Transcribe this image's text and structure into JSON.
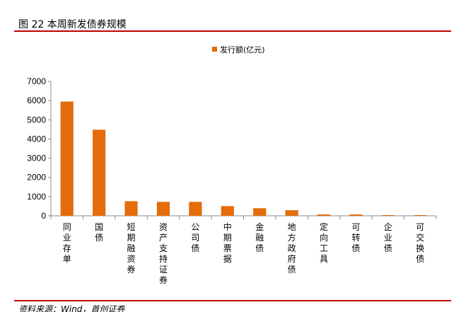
{
  "header": {
    "title": "图  22 本周新发债券规模"
  },
  "footer": {
    "source": "资料来源：Wind，首创证券"
  },
  "colors": {
    "bar": "#e46c0a",
    "rule": "#c00000"
  },
  "chart_data": {
    "type": "bar",
    "title": "",
    "categories": [
      "同业存单",
      "国债",
      "短期融资券",
      "资产支持证券",
      "公司债",
      "中期票据",
      "金融债",
      "地方政府债",
      "定向工具",
      "可转债",
      "企业债",
      "可交换债"
    ],
    "series": [
      {
        "name": "发行额(亿元)",
        "values": [
          5950,
          4480,
          760,
          725,
          725,
          505,
          395,
          290,
          70,
          70,
          35,
          35
        ]
      }
    ],
    "ylim": [
      0,
      7000
    ],
    "yticks": [
      0,
      1000,
      2000,
      3000,
      4000,
      5000,
      6000,
      7000
    ],
    "grid": false,
    "legend": "top"
  }
}
